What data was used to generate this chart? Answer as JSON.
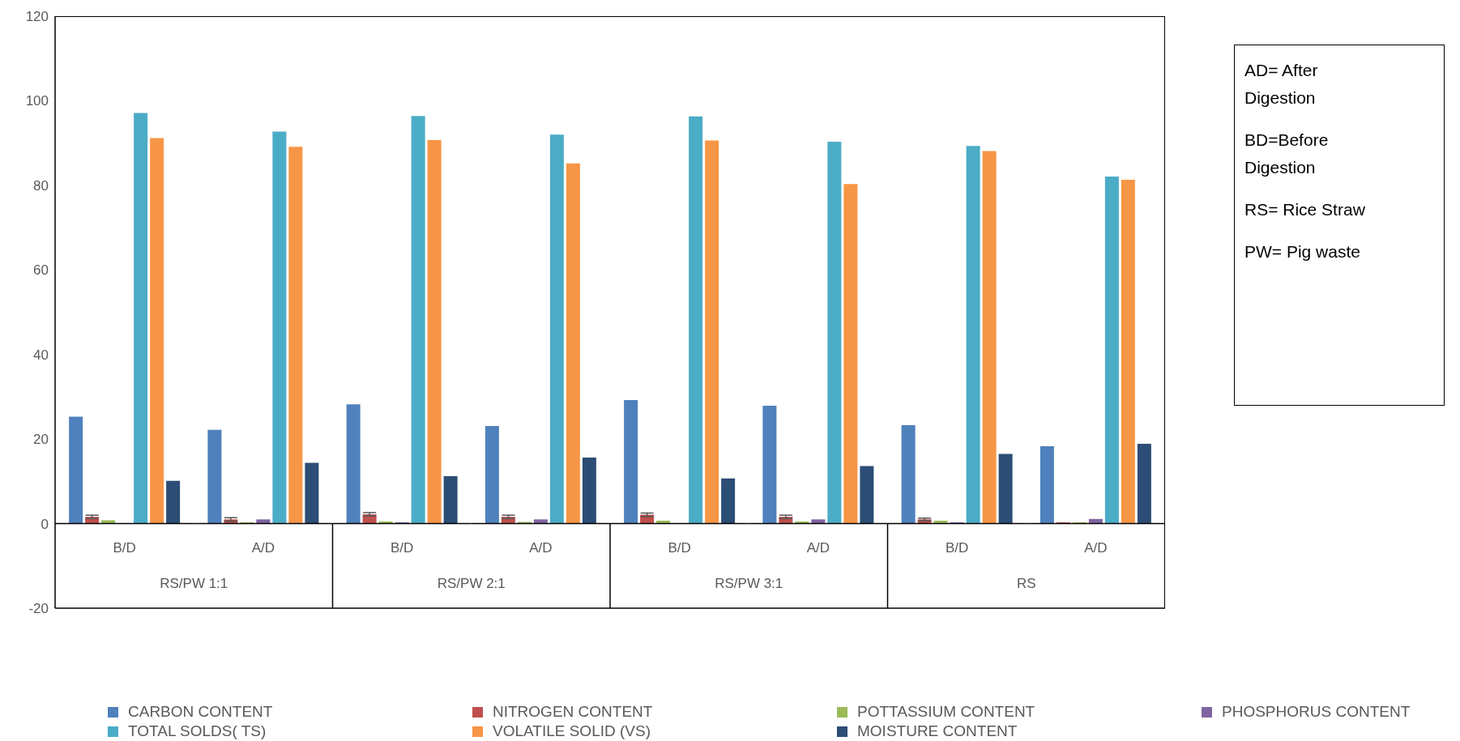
{
  "chart_data": {
    "type": "bar",
    "categories": [
      "B/D",
      "A/D",
      "B/D",
      "A/D",
      "B/D",
      "A/D",
      "B/D",
      "A/D"
    ],
    "series": [
      {
        "name": "CARBON CONTENT",
        "color": "#4f81bd",
        "values": [
          25.3,
          22.2,
          28.2,
          23.1,
          29.2,
          27.9,
          23.3,
          18.3
        ]
      },
      {
        "name": "NITROGEN CONTENT",
        "color": "#c0504d",
        "values": [
          1.6,
          1.0,
          2.2,
          1.6,
          2.1,
          1.6,
          1.0,
          0.3
        ],
        "errors": [
          0.4,
          0.4,
          0.4,
          0.4,
          0.4,
          0.4,
          0.3,
          null
        ]
      },
      {
        "name": "POTTASSIUM CONTENT",
        "color": "#9bbb59",
        "values": [
          0.8,
          0.3,
          0.5,
          0.4,
          0.7,
          0.5,
          0.7,
          0.3
        ]
      },
      {
        "name": "PHOSPHORUS CONTENT",
        "color": "#8064a2",
        "values": [
          null,
          1.0,
          0.3,
          1.0,
          null,
          1.0,
          0.3,
          1.1
        ]
      },
      {
        "name": "TOTAL SOLDS( TS)",
        "color": "#4bacc6",
        "values": [
          97.1,
          92.7,
          96.4,
          92.0,
          96.3,
          90.3,
          89.3,
          82.1
        ]
      },
      {
        "name": "VOLATILE SOLID (VS)",
        "color": "#f79646",
        "values": [
          91.2,
          89.1,
          90.7,
          85.2,
          90.6,
          80.3,
          88.1,
          81.3
        ]
      },
      {
        "name": "MOISTURE CONTENT",
        "color": "#2c4d75",
        "values": [
          10.1,
          14.4,
          11.2,
          15.6,
          10.7,
          13.6,
          16.5,
          18.9
        ]
      }
    ],
    "ylim": [
      -20,
      120
    ],
    "yticks": [
      -20,
      0,
      20,
      40,
      60,
      80,
      100,
      120
    ],
    "legend": "bottom",
    "annotations": [
      "RS/PW 1:1",
      "RS/PW 2:1",
      "RS/PW 3:1",
      "RS",
      "AD= After Digestion",
      "BD=Before Digestion",
      "RS= Rice Straw",
      "PW= Pig waste"
    ]
  }
}
